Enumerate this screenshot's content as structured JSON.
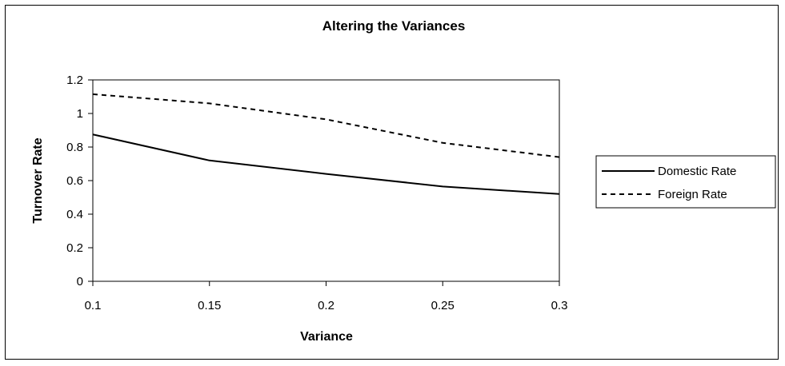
{
  "chart_data": {
    "type": "line",
    "title": "Altering the Variances",
    "xlabel": "Variance",
    "ylabel": "Turnover Rate",
    "x": [
      0.1,
      0.15,
      0.2,
      0.25,
      0.3
    ],
    "x_tick_labels": [
      "0.1",
      "0.15",
      "0.2",
      "0.25",
      "0.3"
    ],
    "y_tick_labels": [
      "0",
      "0.2",
      "0.4",
      "0.6",
      "0.8",
      "1",
      "1.2"
    ],
    "xlim": [
      0.1,
      0.3
    ],
    "ylim": [
      0,
      1.2
    ],
    "grid": false,
    "legend_position": "right",
    "series": [
      {
        "name": "Domestic Rate",
        "values": [
          0.875,
          0.72,
          0.64,
          0.565,
          0.52
        ],
        "style": "solid",
        "color": "#000000"
      },
      {
        "name": "Foreign Rate",
        "values": [
          1.115,
          1.06,
          0.965,
          0.825,
          0.74
        ],
        "style": "dashed",
        "color": "#000000"
      }
    ]
  }
}
